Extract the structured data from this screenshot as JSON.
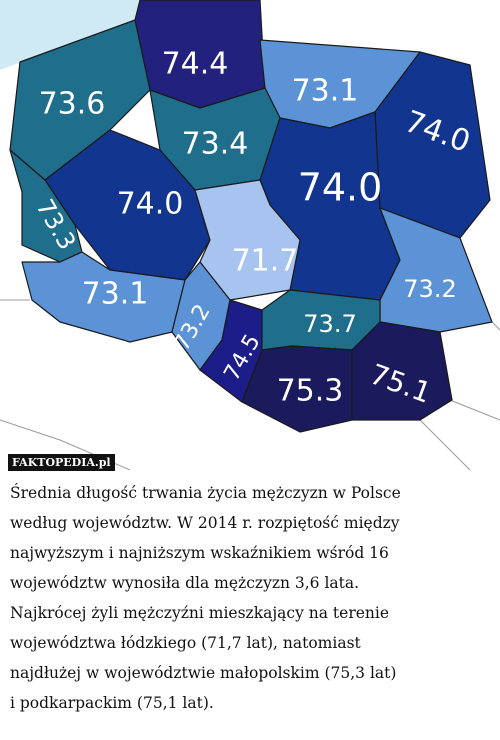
{
  "map": {
    "regions": [
      {
        "label": "74.4"
      },
      {
        "label": "73.6"
      },
      {
        "label": "73.1"
      },
      {
        "label": "74.0"
      },
      {
        "label": "73.4"
      },
      {
        "label": "74.0"
      },
      {
        "label": "74.0"
      },
      {
        "label": "73.3"
      },
      {
        "label": "71.7"
      },
      {
        "label": "73.2"
      },
      {
        "label": "73.1"
      },
      {
        "label": "73.2"
      },
      {
        "label": "74.5"
      },
      {
        "label": "73.7"
      },
      {
        "label": "75.3"
      },
      {
        "label": "75.1"
      }
    ]
  },
  "watermark": "FAKTOPEDIA.pl",
  "caption": [
    "Średnia długość trwania życia mężczyzn w Polsce",
    "według województw. W 2014 r. rozpiętość między",
    "najwyższym i najniższym wskaźnikiem wśród 16",
    "województw wynosiła dla mężczyzn 3,6 lata.",
    "Najkrócej żyli mężczyźni mieszkający na terenie",
    "województwa łódzkiego (71,7 lat), natomiast",
    "najdłużej w województwie małopolskim (75,3 lat)",
    "i podkarpackim (75,1 lat)."
  ]
}
